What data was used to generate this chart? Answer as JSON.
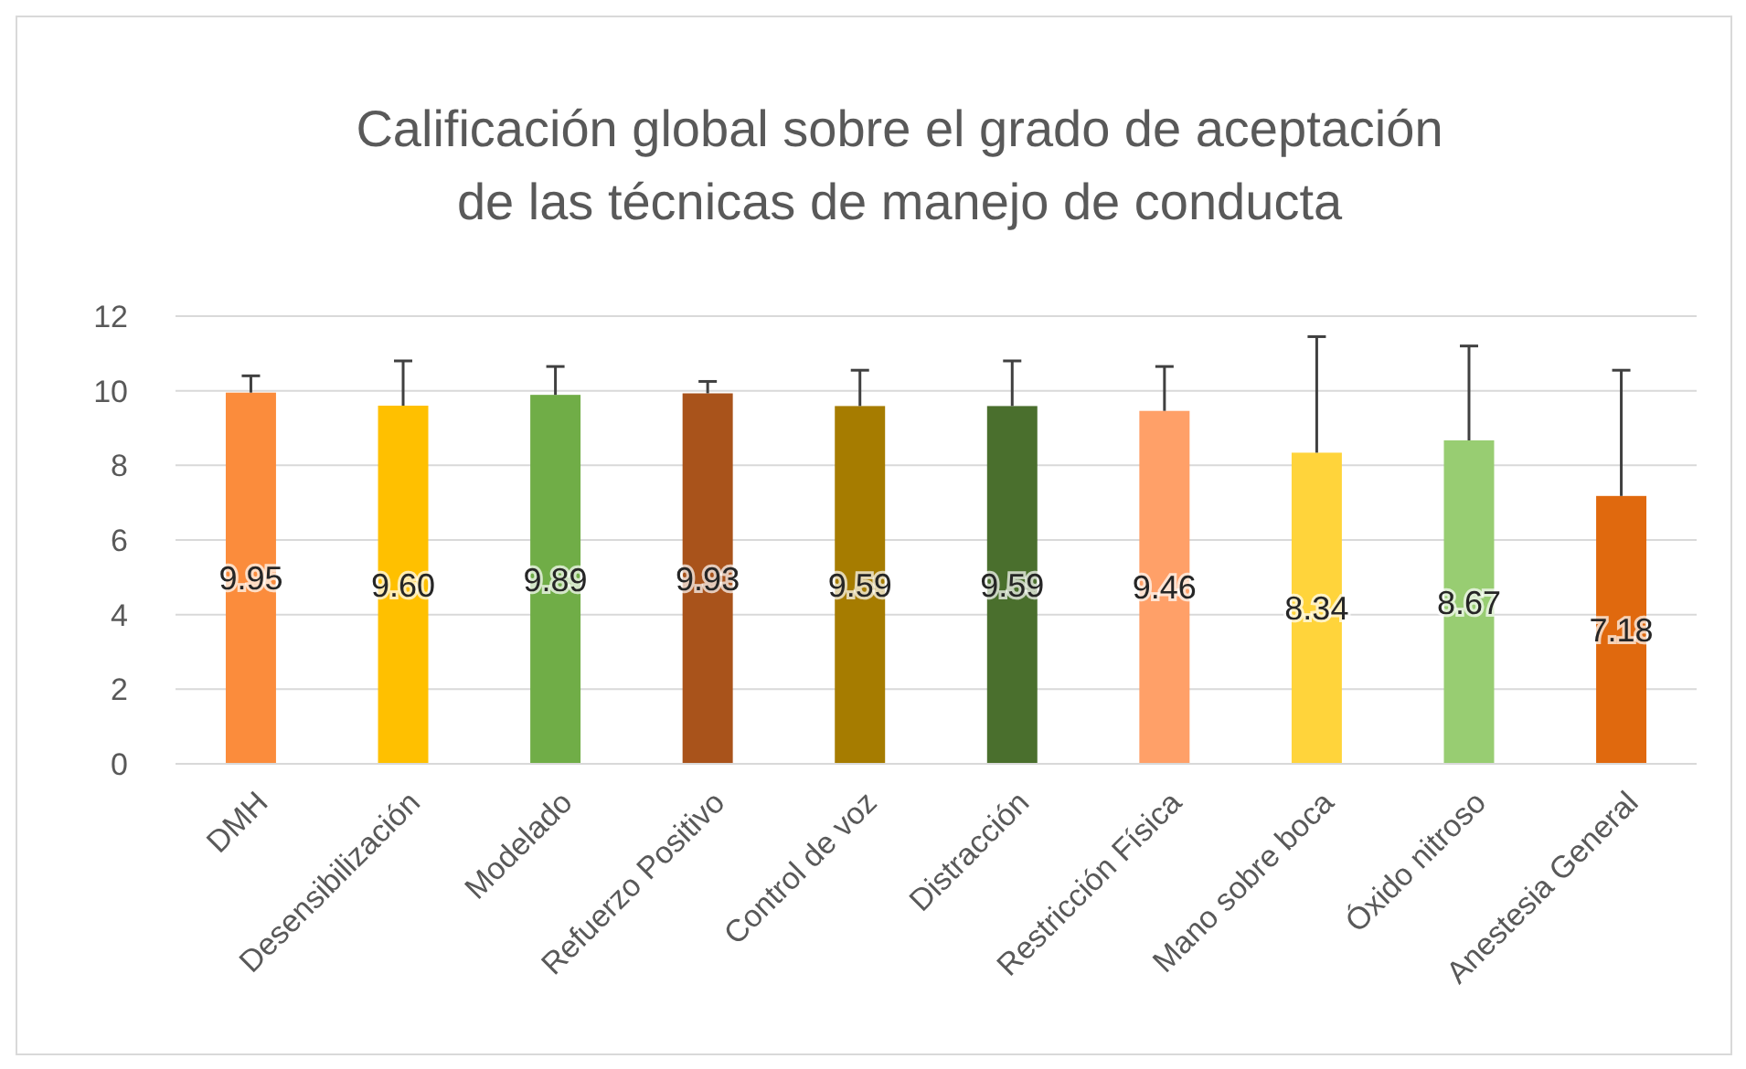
{
  "chart_data": {
    "type": "bar",
    "title": "Calificación global sobre el grado de aceptación de las técnicas de manejo de conducta",
    "categories": [
      "DMH",
      "Desensibilización",
      "Modelado",
      "Refuerzo Positivo",
      "Control de voz",
      "Distracción",
      "Restricción Física",
      "Mano sobre boca",
      "Óxido nitroso",
      "Anestesia General"
    ],
    "values": [
      9.95,
      9.6,
      9.89,
      9.93,
      9.59,
      9.59,
      9.46,
      8.34,
      8.67,
      7.18
    ],
    "colors": [
      "#fb8c3c",
      "#ffc000",
      "#70ad47",
      "#a9531b",
      "#a67c00",
      "#4a6f2d",
      "#ffa068",
      "#ffd43b",
      "#98cd72",
      "#e0690e"
    ],
    "value_labels": [
      "9.95",
      "9.60",
      "9.89",
      "9.93",
      "9.59",
      "9.59",
      "9.46",
      "8.34",
      "8.67",
      "7.18"
    ],
    "errors": [
      [
        9.95,
        10.4
      ],
      [
        9.6,
        10.8
      ],
      [
        9.89,
        10.65
      ],
      [
        9.93,
        10.25
      ],
      [
        9.59,
        10.55
      ],
      [
        9.59,
        10.8
      ],
      [
        9.46,
        10.65
      ],
      [
        8.34,
        11.45
      ],
      [
        8.67,
        11.2
      ],
      [
        7.18,
        10.55
      ]
    ],
    "ylim": [
      0,
      12
    ],
    "yticks": [
      0,
      2,
      4,
      6,
      8,
      10,
      12
    ],
    "grid": "y"
  }
}
